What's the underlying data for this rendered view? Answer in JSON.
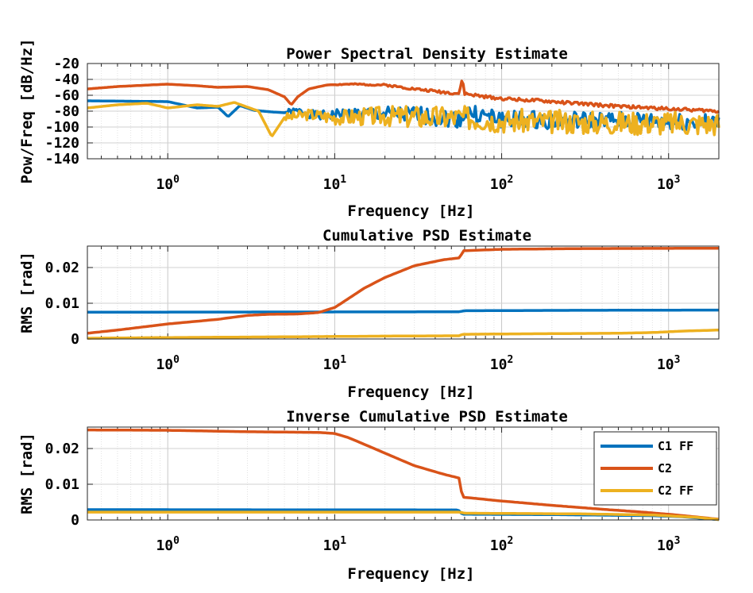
{
  "chart_data": [
    {
      "type": "line",
      "title": "Power Spectral Density Estimate",
      "xlabel": "Frequency [Hz]",
      "ylabel": "Pow/Freq [dB/Hz]",
      "xscale": "log",
      "xlim": [
        0.33,
        2000
      ],
      "ylim": [
        -140,
        -20
      ],
      "xticks": [
        1,
        10,
        100,
        1000
      ],
      "xtick_labels": [
        {
          "base": "10",
          "exp": "0"
        },
        {
          "base": "10",
          "exp": "1"
        },
        {
          "base": "10",
          "exp": "2"
        },
        {
          "base": "10",
          "exp": "3"
        }
      ],
      "yticks": [
        -140,
        -120,
        -100,
        -80,
        -60,
        -40,
        -20
      ],
      "ytick_labels": [
        "-140",
        "-120",
        "-100",
        "-80",
        "-60",
        "-40",
        "-20"
      ],
      "grid": true,
      "series": [
        {
          "color": "#0072BD",
          "noise": {
            "from": 5,
            "amp": 22,
            "seed": 1
          },
          "points": [
            [
              0.33,
              -67
            ],
            [
              1,
              -68
            ],
            [
              1.5,
              -76
            ],
            [
              2,
              -75
            ],
            [
              2.3,
              -87
            ],
            [
              2.7,
              -73
            ],
            [
              3.3,
              -79
            ],
            [
              4.2,
              -81
            ],
            [
              5,
              -82
            ],
            [
              6,
              -80
            ],
            [
              8,
              -86
            ],
            [
              12,
              -83
            ],
            [
              20,
              -84
            ],
            [
              30,
              -85
            ],
            [
              57,
              -90
            ],
            [
              60,
              -82
            ],
            [
              100,
              -90
            ],
            [
              300,
              -92
            ],
            [
              1000,
              -93
            ],
            [
              2000,
              -95
            ]
          ]
        },
        {
          "color": "#D95319",
          "noise": {
            "from": 10,
            "amp": 4,
            "seed": 2
          },
          "points": [
            [
              0.33,
              -52
            ],
            [
              0.5,
              -49
            ],
            [
              1,
              -46
            ],
            [
              1.5,
              -48
            ],
            [
              2,
              -50
            ],
            [
              3,
              -49
            ],
            [
              4,
              -53
            ],
            [
              5,
              -62
            ],
            [
              5.5,
              -72
            ],
            [
              6,
              -62
            ],
            [
              7,
              -52
            ],
            [
              9,
              -47
            ],
            [
              12,
              -46
            ],
            [
              20,
              -47
            ],
            [
              30,
              -52
            ],
            [
              50,
              -57
            ],
            [
              56,
              -58
            ],
            [
              58,
              -38
            ],
            [
              60,
              -58
            ],
            [
              80,
              -62
            ],
            [
              100,
              -64
            ],
            [
              200,
              -68
            ],
            [
              500,
              -74
            ],
            [
              1000,
              -77
            ],
            [
              2000,
              -80
            ]
          ]
        },
        {
          "color": "#EDB120",
          "noise": {
            "from": 5,
            "amp": 30,
            "seed": 3
          },
          "points": [
            [
              0.33,
              -76
            ],
            [
              0.5,
              -72
            ],
            [
              0.75,
              -70
            ],
            [
              1,
              -76
            ],
            [
              1.5,
              -72
            ],
            [
              2,
              -74
            ],
            [
              2.5,
              -69
            ],
            [
              3.5,
              -80
            ],
            [
              4.2,
              -112
            ],
            [
              5,
              -88
            ],
            [
              6,
              -86
            ],
            [
              7,
              -84
            ],
            [
              10,
              -88
            ],
            [
              20,
              -86
            ],
            [
              40,
              -88
            ],
            [
              58,
              -88
            ],
            [
              100,
              -92
            ],
            [
              300,
              -94
            ],
            [
              1000,
              -95
            ],
            [
              2000,
              -96
            ]
          ]
        }
      ]
    },
    {
      "type": "line",
      "title": "Cumulative PSD Estimate",
      "xlabel": "Frequency [Hz]",
      "ylabel": "RMS [rad]",
      "xscale": "log",
      "xlim": [
        0.33,
        2000
      ],
      "ylim": [
        0,
        0.026
      ],
      "xticks": [
        1,
        10,
        100,
        1000
      ],
      "xtick_labels": [
        {
          "base": "10",
          "exp": "0"
        },
        {
          "base": "10",
          "exp": "1"
        },
        {
          "base": "10",
          "exp": "2"
        },
        {
          "base": "10",
          "exp": "3"
        }
      ],
      "yticks": [
        0,
        0.01,
        0.02
      ],
      "ytick_labels": [
        "0",
        "0.01",
        "0.02"
      ],
      "grid": true,
      "series": [
        {
          "color": "#0072BD",
          "points": [
            [
              0.33,
              0.0075
            ],
            [
              55,
              0.0076
            ],
            [
              57,
              0.0077
            ],
            [
              60,
              0.0079
            ],
            [
              200,
              0.008
            ],
            [
              2000,
              0.0081
            ]
          ]
        },
        {
          "color": "#D95319",
          "points": [
            [
              0.33,
              0.0016
            ],
            [
              0.5,
              0.0025
            ],
            [
              1,
              0.0042
            ],
            [
              2,
              0.0055
            ],
            [
              3,
              0.0066
            ],
            [
              4,
              0.0069
            ],
            [
              6,
              0.007
            ],
            [
              8,
              0.0074
            ],
            [
              10,
              0.0088
            ],
            [
              12,
              0.0112
            ],
            [
              15,
              0.0142
            ],
            [
              20,
              0.0172
            ],
            [
              30,
              0.0205
            ],
            [
              45,
              0.0222
            ],
            [
              56,
              0.0227
            ],
            [
              59,
              0.0247
            ],
            [
              100,
              0.0251
            ],
            [
              300,
              0.0253
            ],
            [
              2000,
              0.0254
            ]
          ]
        },
        {
          "color": "#EDB120",
          "points": [
            [
              0.33,
              0.0002
            ],
            [
              1,
              0.0004
            ],
            [
              5,
              0.0006
            ],
            [
              20,
              0.0008
            ],
            [
              56,
              0.0009
            ],
            [
              58,
              0.0013
            ],
            [
              100,
              0.0014
            ],
            [
              500,
              0.0016
            ],
            [
              800,
              0.0018
            ],
            [
              1200,
              0.0022
            ],
            [
              2000,
              0.0025
            ]
          ]
        }
      ]
    },
    {
      "type": "line",
      "title": "Inverse Cumulative PSD Estimate",
      "xlabel": "Frequency [Hz]",
      "ylabel": "RMS [rad]",
      "xscale": "log",
      "xlim": [
        0.33,
        2000
      ],
      "ylim": [
        0,
        0.026
      ],
      "xticks": [
        1,
        10,
        100,
        1000
      ],
      "xtick_labels": [
        {
          "base": "10",
          "exp": "0"
        },
        {
          "base": "10",
          "exp": "1"
        },
        {
          "base": "10",
          "exp": "2"
        },
        {
          "base": "10",
          "exp": "3"
        }
      ],
      "yticks": [
        0,
        0.01,
        0.02
      ],
      "ytick_labels": [
        "0",
        "0.01",
        "0.02"
      ],
      "grid": true,
      "legend": {
        "position": "top-right",
        "entries": [
          {
            "label": "C1 FF",
            "color": "#0072BD"
          },
          {
            "label": "C2",
            "color": "#D95319"
          },
          {
            "label": "C2 FF",
            "color": "#EDB120"
          }
        ]
      },
      "series": [
        {
          "name": "C1 FF",
          "color": "#0072BD",
          "points": [
            [
              0.33,
              0.0029
            ],
            [
              55,
              0.0028
            ],
            [
              58,
              0.0016
            ],
            [
              200,
              0.0015
            ],
            [
              800,
              0.0012
            ],
            [
              1200,
              0.0009
            ],
            [
              2000,
              0.0001
            ]
          ]
        },
        {
          "name": "C2",
          "color": "#D95319",
          "points": [
            [
              0.33,
              0.0252
            ],
            [
              1,
              0.0251
            ],
            [
              3,
              0.0247
            ],
            [
              5,
              0.0246
            ],
            [
              8,
              0.0245
            ],
            [
              10,
              0.0242
            ],
            [
              12,
              0.0231
            ],
            [
              15,
              0.0212
            ],
            [
              20,
              0.0187
            ],
            [
              30,
              0.0152
            ],
            [
              45,
              0.0128
            ],
            [
              56,
              0.0117
            ],
            [
              58,
              0.0064
            ],
            [
              100,
              0.0053
            ],
            [
              200,
              0.0041
            ],
            [
              400,
              0.003
            ],
            [
              700,
              0.0022
            ],
            [
              1000,
              0.0016
            ],
            [
              1500,
              0.0008
            ],
            [
              2000,
              0.0002
            ]
          ]
        },
        {
          "name": "C2 FF",
          "color": "#EDB120",
          "points": [
            [
              0.33,
              0.0022
            ],
            [
              56,
              0.0022
            ],
            [
              60,
              0.0019
            ],
            [
              300,
              0.0017
            ],
            [
              800,
              0.0014
            ],
            [
              1500,
              0.0007
            ],
            [
              2000,
              0.0001
            ]
          ]
        }
      ]
    }
  ]
}
